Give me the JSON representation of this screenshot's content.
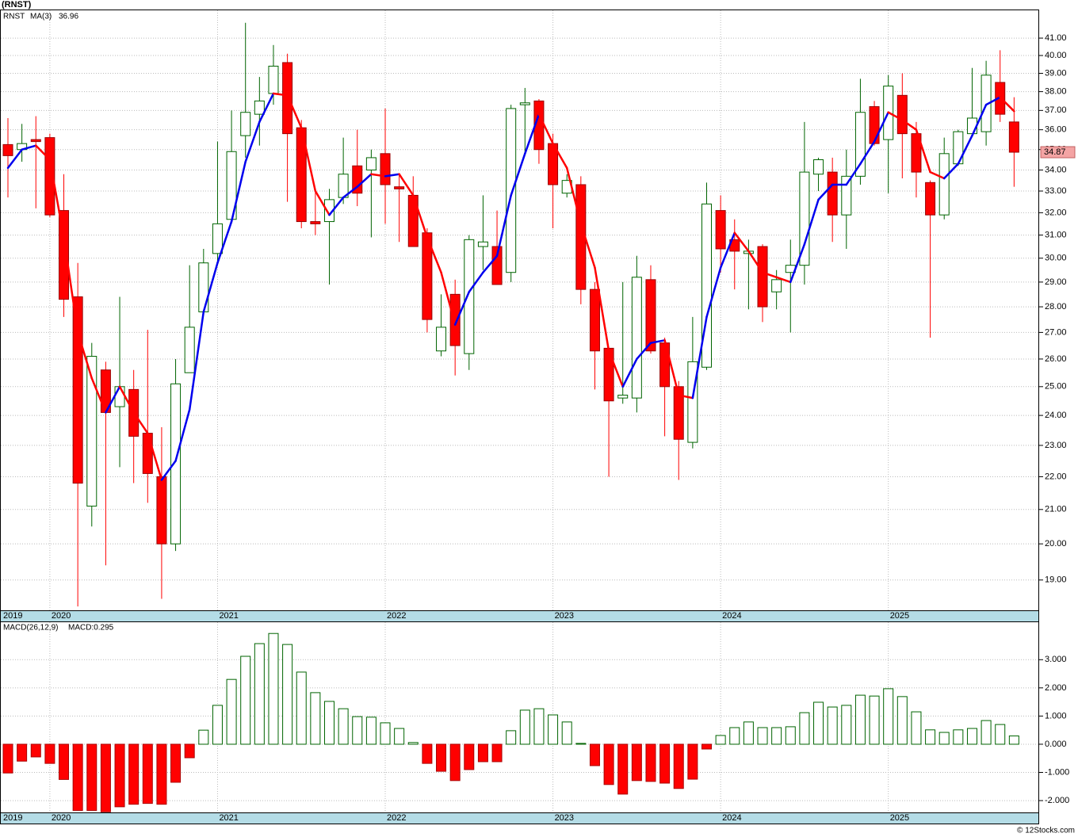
{
  "chart_data": [
    {
      "type": "candlestick",
      "title": "(RNST)",
      "symbol": "RNST",
      "log_scale": true,
      "grid": true,
      "categories": [
        "2019",
        null,
        null,
        "2020",
        null,
        null,
        null,
        null,
        null,
        null,
        null,
        null,
        null,
        null,
        null,
        "2021",
        null,
        null,
        null,
        null,
        null,
        null,
        null,
        null,
        null,
        null,
        null,
        "2022",
        null,
        null,
        null,
        null,
        null,
        null,
        null,
        null,
        null,
        null,
        null,
        "2023",
        null,
        null,
        null,
        null,
        null,
        null,
        null,
        null,
        null,
        null,
        null,
        "2024",
        null,
        null,
        null,
        null,
        null,
        null,
        null,
        null,
        null,
        null,
        null,
        "2025",
        null,
        null,
        null,
        null,
        null,
        null,
        null,
        null,
        null
      ],
      "open": [
        35.25,
        35.0,
        35.5,
        35.6,
        32.1,
        28.4,
        21.1,
        25.6,
        24.3,
        24.9,
        23.4,
        22.0,
        20.0,
        25.5,
        27.8,
        30.2,
        31.7,
        35.7,
        36.8,
        37.9,
        39.6,
        36.1,
        31.6,
        31.6,
        32.7,
        34.2,
        34.0,
        34.8,
        33.2,
        32.8,
        31.1,
        26.3,
        28.5,
        26.2,
        30.5,
        30.5,
        29.4,
        37.3,
        37.5,
        35.3,
        32.9,
        33.3,
        28.7,
        26.4,
        24.6,
        24.6,
        29.1,
        26.6,
        25.0,
        23.1,
        25.7,
        32.1,
        30.8,
        30.2,
        30.5,
        28.6,
        29.4,
        29.7,
        33.8,
        33.9,
        31.9,
        33.7,
        37.2,
        35.5,
        37.8,
        35.8,
        33.4,
        31.9,
        34.3,
        35.8,
        35.9,
        38.5,
        36.4
      ],
      "high": [
        36.6,
        36.3,
        36.7,
        35.8,
        33.8,
        29.8,
        26.6,
        25.9,
        28.4,
        25.6,
        27.1,
        23.6,
        26.0,
        29.7,
        30.4,
        35.4,
        37.0,
        41.9,
        38.8,
        40.6,
        40.1,
        36.5,
        33.0,
        33.1,
        35.6,
        36.0,
        35.0,
        37.1,
        33.8,
        33.7,
        31.3,
        28.5,
        29.1,
        31.0,
        32.8,
        32.1,
        37.3,
        38.2,
        37.6,
        35.8,
        33.8,
        33.7,
        29.0,
        26.4,
        29.0,
        30.1,
        29.7,
        26.8,
        25.2,
        27.6,
        33.4,
        32.8,
        31.7,
        30.8,
        30.6,
        29.5,
        30.8,
        36.4,
        34.6,
        34.6,
        35.0,
        38.7,
        37.5,
        38.9,
        39.0,
        36.4,
        33.5,
        35.6,
        36.0,
        39.3,
        39.7,
        40.3,
        37.7
      ],
      "low": [
        32.7,
        34.4,
        32.2,
        31.8,
        27.6,
        18.3,
        20.5,
        19.4,
        22.3,
        21.8,
        21.2,
        18.5,
        19.8,
        25.5,
        27.7,
        29.8,
        31.5,
        34.6,
        35.2,
        37.3,
        32.5,
        31.3,
        31.0,
        28.9,
        32.4,
        32.3,
        30.9,
        31.5,
        30.7,
        30.5,
        27.0,
        26.1,
        25.4,
        25.6,
        29.5,
        28.9,
        29.0,
        34.8,
        34.3,
        31.3,
        32.7,
        28.1,
        24.9,
        22.0,
        24.4,
        24.1,
        26.2,
        23.3,
        21.9,
        22.9,
        25.6,
        29.4,
        28.7,
        27.9,
        27.4,
        27.9,
        27.0,
        28.9,
        33.0,
        30.7,
        30.4,
        33.3,
        35.2,
        32.9,
        33.6,
        32.7,
        26.8,
        31.7,
        34.2,
        35.7,
        35.2,
        36.4,
        33.2
      ],
      "close": [
        34.7,
        35.3,
        35.4,
        31.9,
        28.3,
        21.8,
        26.1,
        24.1,
        25.0,
        23.3,
        22.1,
        20.0,
        25.1,
        27.2,
        29.8,
        31.5,
        34.9,
        36.9,
        37.5,
        39.4,
        35.8,
        31.6,
        31.5,
        32.6,
        33.8,
        32.9,
        34.6,
        33.3,
        33.1,
        30.5,
        27.5,
        27.2,
        26.5,
        30.8,
        30.7,
        28.9,
        37.1,
        37.4,
        35.0,
        33.3,
        33.5,
        28.7,
        26.3,
        24.5,
        24.7,
        29.2,
        26.3,
        25.0,
        23.2,
        25.9,
        32.4,
        30.4,
        30.3,
        30.3,
        28.0,
        29.1,
        29.7,
        33.9,
        34.5,
        31.9,
        33.7,
        36.9,
        35.3,
        38.3,
        35.8,
        33.9,
        31.9,
        34.8,
        35.9,
        36.6,
        38.9,
        36.8,
        34.87
      ],
      "ma": {
        "name": "MA(3)",
        "values": [
          34.1,
          35.0,
          35.2,
          34.5,
          30.9,
          27.0,
          25.3,
          24.1,
          25.0,
          24.1,
          23.4,
          21.9,
          22.5,
          24.2,
          27.8,
          29.8,
          31.6,
          34.4,
          36.4,
          37.9,
          37.8,
          36.1,
          33.0,
          31.9,
          32.7,
          33.2,
          33.8,
          33.7,
          33.8,
          32.8,
          30.9,
          29.4,
          27.3,
          28.6,
          29.4,
          30.1,
          32.8,
          34.8,
          36.8,
          35.3,
          34.1,
          31.5,
          29.6,
          26.3,
          25.0,
          26.0,
          26.6,
          26.7,
          24.7,
          24.6,
          27.6,
          29.6,
          31.1,
          30.3,
          29.4,
          29.2,
          29.0,
          30.6,
          32.6,
          33.3,
          33.3,
          34.3,
          35.4,
          36.9,
          36.5,
          36.0,
          33.9,
          33.6,
          34.3,
          35.7,
          37.3,
          37.7,
          36.96
        ]
      },
      "ylim": [
        18.2,
        42.65
      ],
      "yticks": [
        {
          "value": 19,
          "label": "19.00"
        },
        {
          "value": 20,
          "label": "20.00"
        },
        {
          "value": 21,
          "label": "21.00"
        },
        {
          "value": 22,
          "label": "22.00"
        },
        {
          "value": 23,
          "label": "23.00"
        },
        {
          "value": 24,
          "label": "24.00"
        },
        {
          "value": 25,
          "label": "25.00"
        },
        {
          "value": 26,
          "label": "26.00"
        },
        {
          "value": 27,
          "label": "27.00"
        },
        {
          "value": 28,
          "label": "28.00"
        },
        {
          "value": 29,
          "label": "29.00"
        },
        {
          "value": 30,
          "label": "30.00"
        },
        {
          "value": 31,
          "label": "31.00"
        },
        {
          "value": 32,
          "label": "32.00"
        },
        {
          "value": 33,
          "label": "33.00"
        },
        {
          "value": 34,
          "label": "34.00"
        },
        {
          "value": 35,
          "label": "35.00"
        },
        {
          "value": 36,
          "label": "36.00"
        },
        {
          "value": 37,
          "label": "37.00"
        },
        {
          "value": 38,
          "label": "38.00"
        },
        {
          "value": 39,
          "label": "39.00"
        },
        {
          "value": 40,
          "label": "40.00"
        },
        {
          "value": 41,
          "label": "41.00"
        }
      ],
      "up_color": "#006400",
      "down_color": "#ff0000",
      "ma_up_color": "#0000ee",
      "ma_down_color": "#ff0000",
      "symbol_color": "#008000",
      "last_box_color": "#f4a4a4"
    },
    {
      "type": "bar",
      "title": "MACD(26,12,9)",
      "value_text": "MACD:0.295",
      "grid": true,
      "categories": [
        "2019",
        null,
        null,
        "2020",
        null,
        null,
        null,
        null,
        null,
        null,
        null,
        null,
        null,
        null,
        null,
        "2021",
        null,
        null,
        null,
        null,
        null,
        null,
        null,
        null,
        null,
        null,
        null,
        "2022",
        null,
        null,
        null,
        null,
        null,
        null,
        null,
        null,
        null,
        null,
        null,
        "2023",
        null,
        null,
        null,
        null,
        null,
        null,
        null,
        null,
        null,
        null,
        null,
        "2024",
        null,
        null,
        null,
        null,
        null,
        null,
        null,
        null,
        null,
        null,
        null,
        "2025",
        null,
        null,
        null,
        null,
        null,
        null,
        null,
        null,
        null
      ],
      "values": [
        -1.02,
        -0.6,
        -0.45,
        -0.68,
        -1.25,
        -2.35,
        -2.35,
        -2.4,
        -2.22,
        -2.13,
        -2.1,
        -2.13,
        -1.35,
        -0.48,
        0.5,
        1.38,
        2.3,
        3.12,
        3.57,
        3.93,
        3.54,
        2.56,
        1.83,
        1.52,
        1.26,
        0.98,
        0.96,
        0.76,
        0.56,
        0.06,
        -0.68,
        -0.96,
        -1.29,
        -0.9,
        -0.62,
        -0.62,
        0.48,
        1.21,
        1.26,
        1.04,
        0.79,
        0.03,
        -0.76,
        -1.43,
        -1.77,
        -1.29,
        -1.32,
        -1.38,
        -1.57,
        -1.24,
        -0.17,
        0.31,
        0.59,
        0.79,
        0.59,
        0.59,
        0.62,
        1.12,
        1.49,
        1.32,
        1.38,
        1.74,
        1.71,
        1.97,
        1.69,
        1.15,
        0.51,
        0.42,
        0.51,
        0.56,
        0.84,
        0.7,
        0.295
      ],
      "ylim": [
        -2.42,
        4.33
      ],
      "yticks": [
        {
          "value": -2,
          "label": "-2.000"
        },
        {
          "value": -1,
          "label": "-1.000"
        },
        {
          "value": 0,
          "label": "0.000"
        },
        {
          "value": 1,
          "label": "1.000"
        },
        {
          "value": 2,
          "label": "2.000"
        },
        {
          "value": 3,
          "label": "3.000"
        }
      ],
      "pos_color": "#006400",
      "neg_color": "#ff0000",
      "value_text_color": "#0000cc"
    }
  ],
  "footer": "© 12Stocks.com"
}
